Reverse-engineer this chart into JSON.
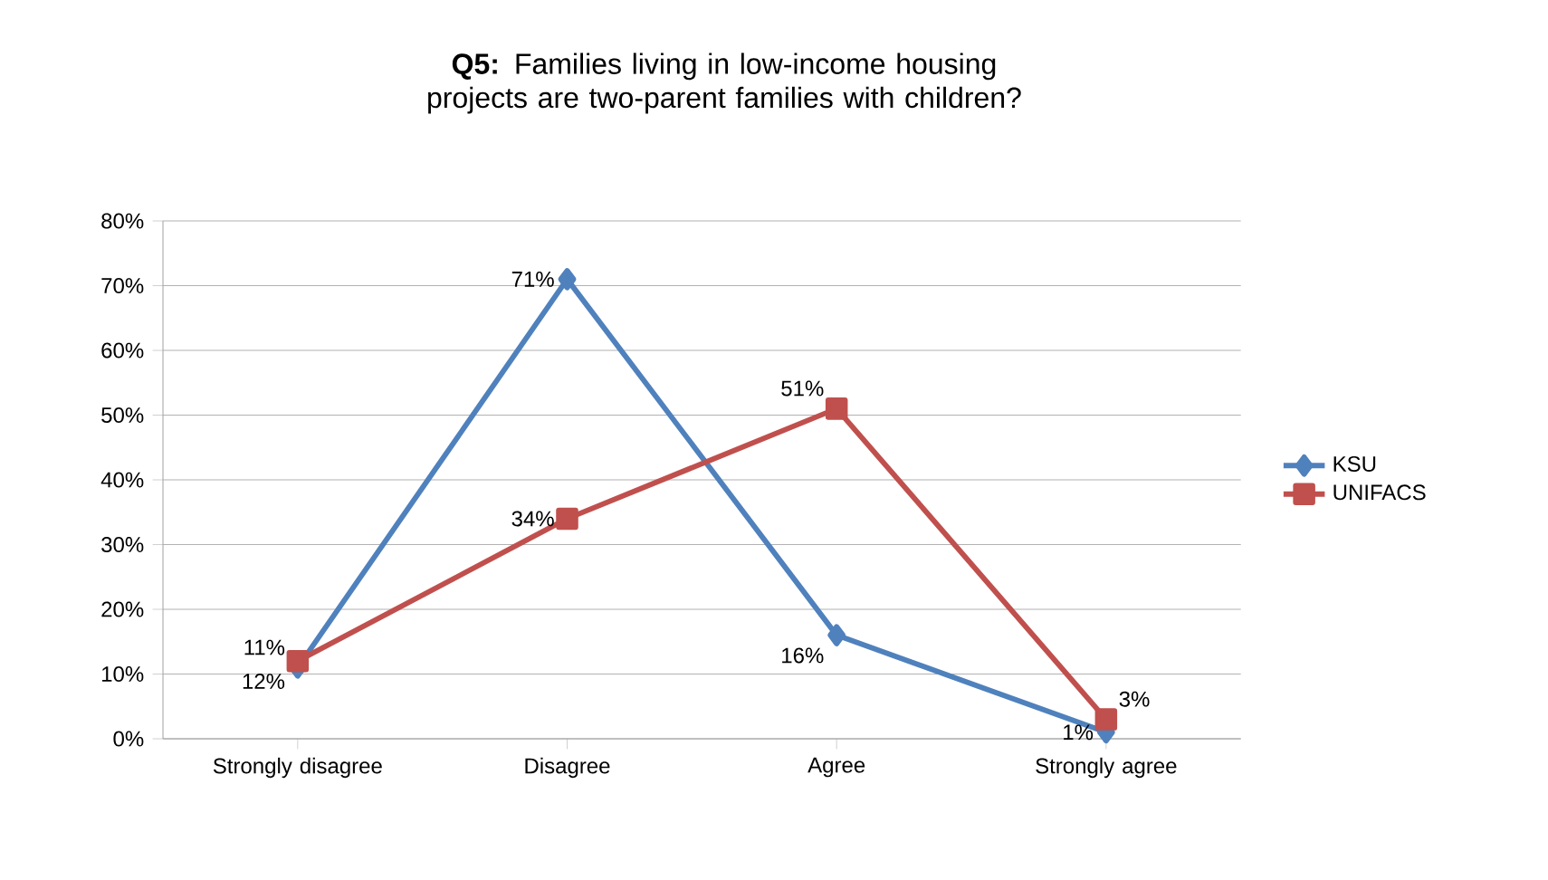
{
  "chart_data": {
    "type": "line",
    "title": "**Q5:** Families living in low-income housing projects are two-parent families with children?",
    "categories": [
      "Strongly disagree",
      "Disagree",
      "Agree",
      "Strongly agree"
    ],
    "series": [
      {
        "name": "KSU",
        "color": "#4f81bd",
        "marker": "diamond",
        "values": [
          11,
          71,
          16,
          1
        ],
        "value_labels": [
          "11%",
          "71%",
          "16%",
          "1%"
        ]
      },
      {
        "name": "UNIFACS",
        "color": "#c0504d",
        "marker": "square",
        "values": [
          12,
          34,
          51,
          3
        ],
        "value_labels": [
          "12%",
          "34%",
          "51%",
          "3%"
        ]
      }
    ],
    "ylim": [
      0,
      80
    ],
    "yticks": [
      {
        "value": 0,
        "label": "0%"
      },
      {
        "value": 10,
        "label": "10%"
      },
      {
        "value": 20,
        "label": "20%"
      },
      {
        "value": 30,
        "label": "30%"
      },
      {
        "value": 40,
        "label": "40%"
      },
      {
        "value": 50,
        "label": "50%"
      },
      {
        "value": 60,
        "label": "60%"
      },
      {
        "value": 70,
        "label": "70%"
      },
      {
        "value": 80,
        "label": "80%"
      }
    ],
    "grid": "y",
    "legend": "right",
    "line_style": "solid"
  }
}
